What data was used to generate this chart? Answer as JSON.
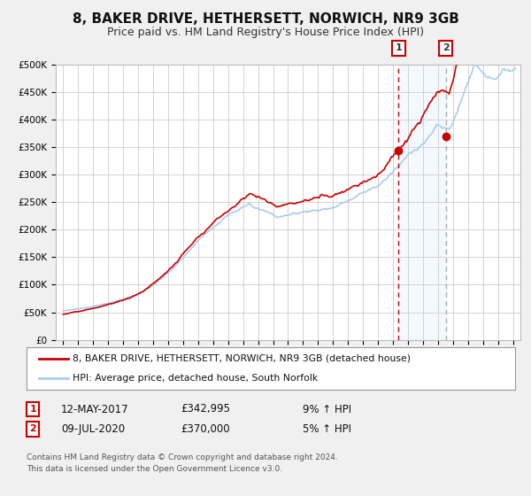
{
  "title": "8, BAKER DRIVE, HETHERSETT, NORWICH, NR9 3GB",
  "subtitle": "Price paid vs. HM Land Registry's House Price Index (HPI)",
  "legend_line1": "8, BAKER DRIVE, HETHERSETT, NORWICH, NR9 3GB (detached house)",
  "legend_line2": "HPI: Average price, detached house, South Norfolk",
  "sale1_label": "1",
  "sale1_date": "12-MAY-2017",
  "sale1_price": "£342,995",
  "sale1_hpi": "9% ↑ HPI",
  "sale2_label": "2",
  "sale2_date": "09-JUL-2020",
  "sale2_price": "£370,000",
  "sale2_hpi": "5% ↑ HPI",
  "footer": "Contains HM Land Registry data © Crown copyright and database right 2024.\nThis data is licensed under the Open Government Licence v3.0.",
  "line1_color": "#cc0000",
  "line2_color": "#aaccee",
  "marker_color": "#cc0000",
  "vline1_color": "#cc0000",
  "vline2_color": "#aaaaaa",
  "shading_color": "#ddeeff",
  "sale1_x": 2017.36,
  "sale2_x": 2020.52,
  "ylim_min": 0,
  "ylim_max": 500000,
  "xlim_min": 1994.5,
  "xlim_max": 2025.5,
  "background_color": "#f0f0f0",
  "plot_background": "#ffffff",
  "grid_color": "#cccccc",
  "title_fontsize": 11,
  "subtitle_fontsize": 9
}
